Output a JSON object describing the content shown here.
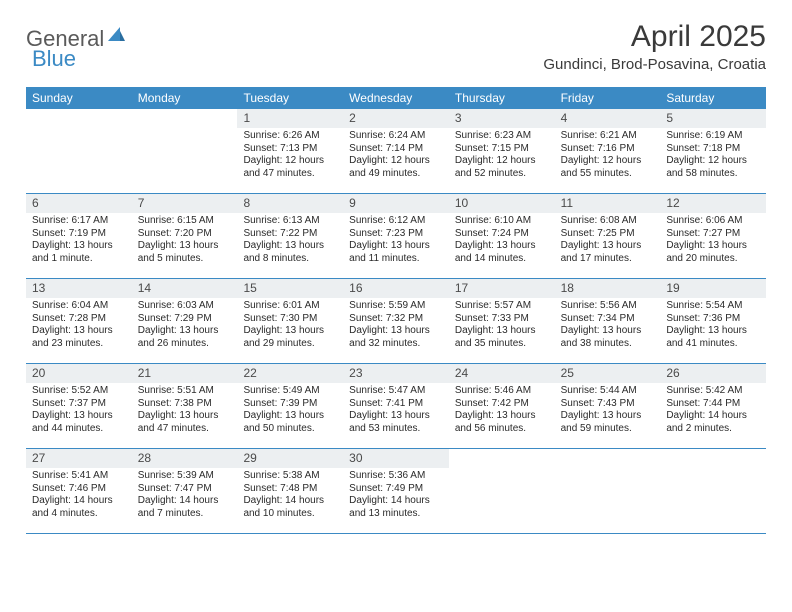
{
  "logo": {
    "text1": "General",
    "text2": "Blue",
    "color_gray": "#5a5a5a",
    "color_blue": "#3b8ac4"
  },
  "title": {
    "month_year": "April 2025",
    "location": "Gundinci, Brod-Posavina, Croatia"
  },
  "colors": {
    "header_bg": "#3b8ac4",
    "header_fg": "#ffffff",
    "daynum_bg": "#eceff1",
    "text": "#2a2a2a",
    "divider": "#3b8ac4",
    "background": "#ffffff"
  },
  "typography": {
    "title_fontsize": 30,
    "location_fontsize": 15,
    "weekday_fontsize": 12,
    "daynum_fontsize": 12,
    "body_fontsize": 10
  },
  "weekdays": [
    "Sunday",
    "Monday",
    "Tuesday",
    "Wednesday",
    "Thursday",
    "Friday",
    "Saturday"
  ],
  "layout": {
    "first_day_column": 2,
    "total_days": 30
  },
  "days": [
    {
      "n": 1,
      "sunrise": "6:26 AM",
      "sunset": "7:13 PM",
      "daylight": "12 hours and 47 minutes."
    },
    {
      "n": 2,
      "sunrise": "6:24 AM",
      "sunset": "7:14 PM",
      "daylight": "12 hours and 49 minutes."
    },
    {
      "n": 3,
      "sunrise": "6:23 AM",
      "sunset": "7:15 PM",
      "daylight": "12 hours and 52 minutes."
    },
    {
      "n": 4,
      "sunrise": "6:21 AM",
      "sunset": "7:16 PM",
      "daylight": "12 hours and 55 minutes."
    },
    {
      "n": 5,
      "sunrise": "6:19 AM",
      "sunset": "7:18 PM",
      "daylight": "12 hours and 58 minutes."
    },
    {
      "n": 6,
      "sunrise": "6:17 AM",
      "sunset": "7:19 PM",
      "daylight": "13 hours and 1 minute."
    },
    {
      "n": 7,
      "sunrise": "6:15 AM",
      "sunset": "7:20 PM",
      "daylight": "13 hours and 5 minutes."
    },
    {
      "n": 8,
      "sunrise": "6:13 AM",
      "sunset": "7:22 PM",
      "daylight": "13 hours and 8 minutes."
    },
    {
      "n": 9,
      "sunrise": "6:12 AM",
      "sunset": "7:23 PM",
      "daylight": "13 hours and 11 minutes."
    },
    {
      "n": 10,
      "sunrise": "6:10 AM",
      "sunset": "7:24 PM",
      "daylight": "13 hours and 14 minutes."
    },
    {
      "n": 11,
      "sunrise": "6:08 AM",
      "sunset": "7:25 PM",
      "daylight": "13 hours and 17 minutes."
    },
    {
      "n": 12,
      "sunrise": "6:06 AM",
      "sunset": "7:27 PM",
      "daylight": "13 hours and 20 minutes."
    },
    {
      "n": 13,
      "sunrise": "6:04 AM",
      "sunset": "7:28 PM",
      "daylight": "13 hours and 23 minutes."
    },
    {
      "n": 14,
      "sunrise": "6:03 AM",
      "sunset": "7:29 PM",
      "daylight": "13 hours and 26 minutes."
    },
    {
      "n": 15,
      "sunrise": "6:01 AM",
      "sunset": "7:30 PM",
      "daylight": "13 hours and 29 minutes."
    },
    {
      "n": 16,
      "sunrise": "5:59 AM",
      "sunset": "7:32 PM",
      "daylight": "13 hours and 32 minutes."
    },
    {
      "n": 17,
      "sunrise": "5:57 AM",
      "sunset": "7:33 PM",
      "daylight": "13 hours and 35 minutes."
    },
    {
      "n": 18,
      "sunrise": "5:56 AM",
      "sunset": "7:34 PM",
      "daylight": "13 hours and 38 minutes."
    },
    {
      "n": 19,
      "sunrise": "5:54 AM",
      "sunset": "7:36 PM",
      "daylight": "13 hours and 41 minutes."
    },
    {
      "n": 20,
      "sunrise": "5:52 AM",
      "sunset": "7:37 PM",
      "daylight": "13 hours and 44 minutes."
    },
    {
      "n": 21,
      "sunrise": "5:51 AM",
      "sunset": "7:38 PM",
      "daylight": "13 hours and 47 minutes."
    },
    {
      "n": 22,
      "sunrise": "5:49 AM",
      "sunset": "7:39 PM",
      "daylight": "13 hours and 50 minutes."
    },
    {
      "n": 23,
      "sunrise": "5:47 AM",
      "sunset": "7:41 PM",
      "daylight": "13 hours and 53 minutes."
    },
    {
      "n": 24,
      "sunrise": "5:46 AM",
      "sunset": "7:42 PM",
      "daylight": "13 hours and 56 minutes."
    },
    {
      "n": 25,
      "sunrise": "5:44 AM",
      "sunset": "7:43 PM",
      "daylight": "13 hours and 59 minutes."
    },
    {
      "n": 26,
      "sunrise": "5:42 AM",
      "sunset": "7:44 PM",
      "daylight": "14 hours and 2 minutes."
    },
    {
      "n": 27,
      "sunrise": "5:41 AM",
      "sunset": "7:46 PM",
      "daylight": "14 hours and 4 minutes."
    },
    {
      "n": 28,
      "sunrise": "5:39 AM",
      "sunset": "7:47 PM",
      "daylight": "14 hours and 7 minutes."
    },
    {
      "n": 29,
      "sunrise": "5:38 AM",
      "sunset": "7:48 PM",
      "daylight": "14 hours and 10 minutes."
    },
    {
      "n": 30,
      "sunrise": "5:36 AM",
      "sunset": "7:49 PM",
      "daylight": "14 hours and 13 minutes."
    }
  ],
  "labels": {
    "sunrise_prefix": "Sunrise: ",
    "sunset_prefix": "Sunset: ",
    "daylight_prefix": "Daylight: "
  }
}
